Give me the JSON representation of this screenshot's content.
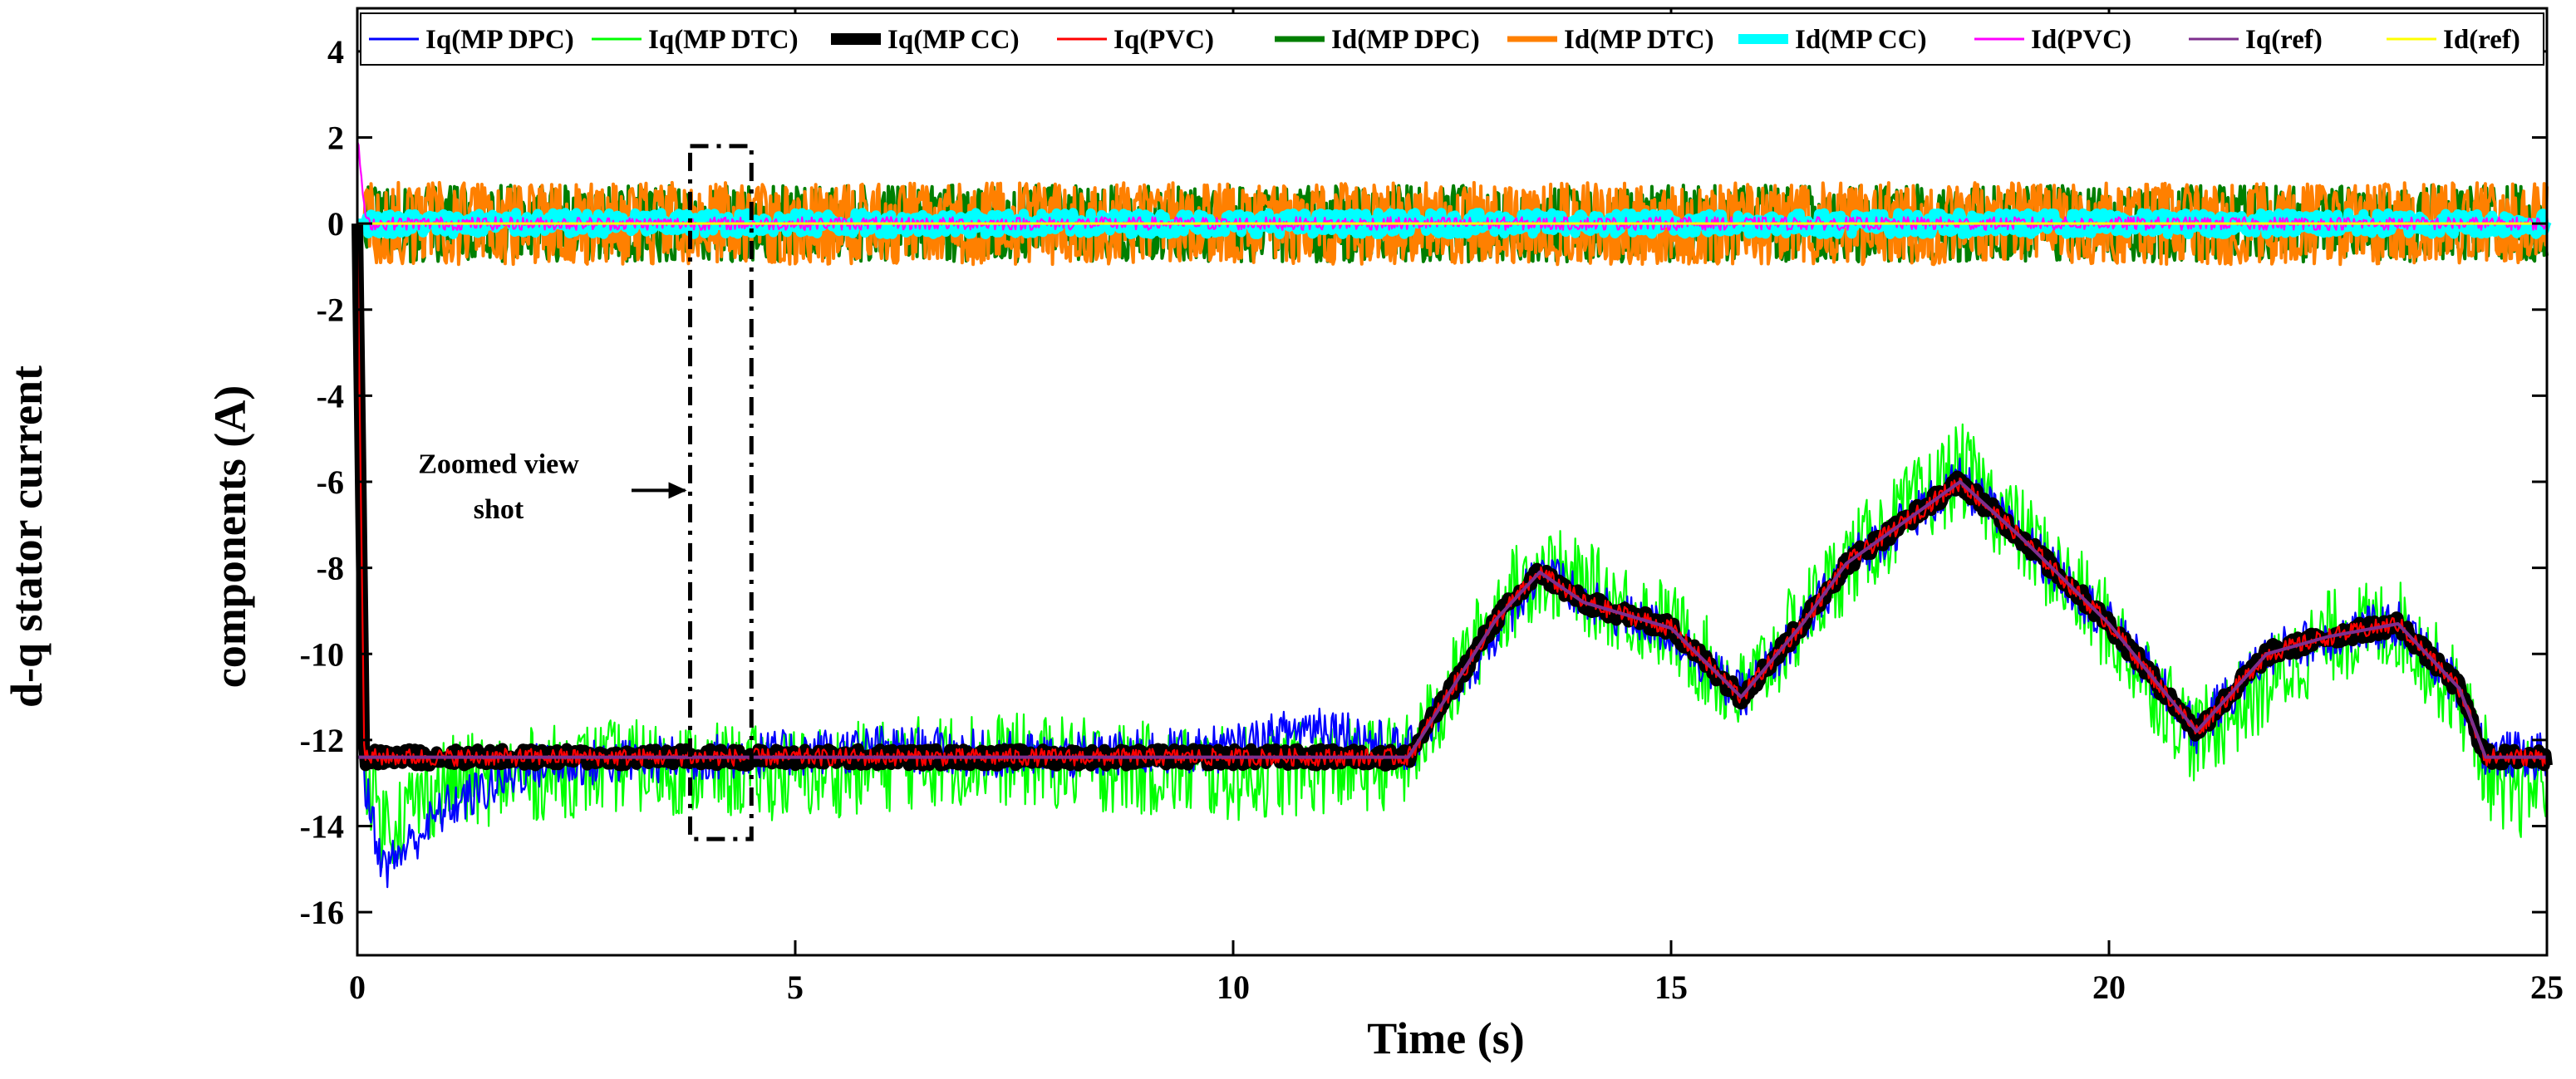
{
  "chart_data": {
    "type": "line",
    "title": "",
    "xlabel": "Time (s)",
    "ylabel": [
      "d-q stator current",
      "components (A)"
    ],
    "xlim": [
      0,
      25
    ],
    "ylim": [
      -17,
      5
    ],
    "xticks": [
      0,
      5,
      10,
      15,
      20,
      25
    ],
    "yticks": [
      4,
      2,
      0,
      -2,
      -4,
      -6,
      -8,
      -10,
      -12,
      -14,
      -16
    ],
    "grid": false,
    "legend_position": "top",
    "series": [
      {
        "name": "Iq(MP DPC)",
        "color": "#0000ff",
        "noise": 0.55,
        "values": [
          [
            0,
            0
          ],
          [
            0.08,
            -13.0
          ],
          [
            0.3,
            -15.0
          ],
          [
            1,
            -13.6
          ],
          [
            2,
            -12.6
          ],
          [
            4,
            -12.4
          ],
          [
            6,
            -12.2
          ],
          [
            8,
            -12.4
          ],
          [
            10,
            -12.2
          ],
          [
            11,
            -11.6
          ],
          [
            12,
            -12.3
          ],
          [
            13,
            -9.5
          ],
          [
            13.5,
            -8.0
          ],
          [
            14,
            -8.8
          ],
          [
            15,
            -9.5
          ],
          [
            15.8,
            -11.0
          ],
          [
            16.5,
            -9.4
          ],
          [
            17,
            -7.9
          ],
          [
            18.3,
            -6.0
          ],
          [
            19,
            -7.3
          ],
          [
            20,
            -9.3
          ],
          [
            21,
            -11.8
          ],
          [
            21.8,
            -10.0
          ],
          [
            22.5,
            -9.6
          ],
          [
            23.3,
            -9.3
          ],
          [
            24,
            -10.8
          ],
          [
            24.3,
            -12.3
          ],
          [
            25,
            -12.4
          ]
        ]
      },
      {
        "name": "Iq(MP DTC)",
        "color": "#00ff00",
        "noise": 1.1,
        "values": [
          [
            0,
            0
          ],
          [
            0.08,
            -12.5
          ],
          [
            0.3,
            -14.0
          ],
          [
            1,
            -13.0
          ],
          [
            3,
            -12.6
          ],
          [
            5,
            -12.8
          ],
          [
            7,
            -12.4
          ],
          [
            10,
            -12.8
          ],
          [
            12,
            -12.5
          ],
          [
            13,
            -9.0
          ],
          [
            13.5,
            -8.0
          ],
          [
            15,
            -9.4
          ],
          [
            15.8,
            -11.0
          ],
          [
            17,
            -7.9
          ],
          [
            18.3,
            -5.7
          ],
          [
            20,
            -9.4
          ],
          [
            21,
            -12.0
          ],
          [
            22.5,
            -9.6
          ],
          [
            23.3,
            -9.3
          ],
          [
            24,
            -11.0
          ],
          [
            24.5,
            -13.5
          ],
          [
            25,
            -12.8
          ]
        ]
      },
      {
        "name": "Iq(MP CC)",
        "color": "#000000",
        "noise": 0.2,
        "values": [
          [
            0,
            0
          ],
          [
            0.08,
            -12.4
          ],
          [
            12,
            -12.4
          ],
          [
            13,
            -9.2
          ],
          [
            13.5,
            -8.1
          ],
          [
            14,
            -8.8
          ],
          [
            15,
            -9.4
          ],
          [
            15.8,
            -11.0
          ],
          [
            16.5,
            -9.3
          ],
          [
            17,
            -7.9
          ],
          [
            18.3,
            -6.0
          ],
          [
            19,
            -7.3
          ],
          [
            20,
            -9.3
          ],
          [
            21,
            -11.8
          ],
          [
            21.8,
            -10.0
          ],
          [
            22.5,
            -9.6
          ],
          [
            23.3,
            -9.3
          ],
          [
            24,
            -10.8
          ],
          [
            24.3,
            -12.4
          ],
          [
            25,
            -12.4
          ]
        ]
      },
      {
        "name": "Iq(PVC)",
        "color": "#ff0000",
        "noise": 0.2,
        "values": [
          [
            0,
            0
          ],
          [
            0.08,
            -12.4
          ],
          [
            12,
            -12.4
          ],
          [
            13,
            -9.2
          ],
          [
            13.5,
            -8.1
          ],
          [
            14,
            -8.8
          ],
          [
            15,
            -9.4
          ],
          [
            15.8,
            -11.0
          ],
          [
            16.5,
            -9.3
          ],
          [
            17,
            -7.9
          ],
          [
            18.3,
            -6.0
          ],
          [
            19,
            -7.3
          ],
          [
            20,
            -9.3
          ],
          [
            21,
            -11.8
          ],
          [
            21.8,
            -10.0
          ],
          [
            22.5,
            -9.6
          ],
          [
            23.3,
            -9.3
          ],
          [
            24,
            -10.8
          ],
          [
            24.3,
            -12.4
          ],
          [
            25,
            -12.4
          ]
        ]
      },
      {
        "name": "Id(MP DPC)",
        "color": "#007f00",
        "noise": 0.9,
        "values": [
          [
            0,
            0
          ],
          [
            25,
            0
          ]
        ]
      },
      {
        "name": "Id(MP DTC)",
        "color": "#ff8000",
        "noise": 1.0,
        "values": [
          [
            0,
            0
          ],
          [
            25,
            0
          ]
        ]
      },
      {
        "name": "Id(MP CC)",
        "color": "#00ffff",
        "noise": 0.25,
        "values": [
          [
            0,
            0
          ],
          [
            25,
            0
          ]
        ]
      },
      {
        "name": "Id(PVC)",
        "color": "#ff00ff",
        "noise": 0.15,
        "values": [
          [
            0,
            2.0
          ],
          [
            0.1,
            0
          ],
          [
            25,
            0
          ]
        ]
      },
      {
        "name": "Iq(ref)",
        "color": "#7e2f8e",
        "noise": 0,
        "values": [
          [
            0,
            -12.4
          ],
          [
            12,
            -12.4
          ],
          [
            13,
            -9.2
          ],
          [
            13.5,
            -8.1
          ],
          [
            14,
            -8.8
          ],
          [
            15,
            -9.4
          ],
          [
            15.8,
            -11.0
          ],
          [
            16.5,
            -9.3
          ],
          [
            17,
            -7.9
          ],
          [
            18.3,
            -6.0
          ],
          [
            19,
            -7.3
          ],
          [
            20,
            -9.3
          ],
          [
            21,
            -11.8
          ],
          [
            21.8,
            -10.0
          ],
          [
            22.5,
            -9.6
          ],
          [
            23.3,
            -9.3
          ],
          [
            24,
            -10.8
          ],
          [
            24.3,
            -12.4
          ],
          [
            25,
            -12.4
          ]
        ]
      },
      {
        "name": "Id(ref)",
        "color": "#ffff00",
        "noise": 0,
        "values": [
          [
            0,
            0
          ],
          [
            25,
            0
          ]
        ]
      }
    ],
    "annotations": [
      {
        "text": [
          "Zoomed view",
          "shot"
        ],
        "x_range": [
          3.8,
          4.5
        ],
        "y_range": [
          -14.3,
          1.8
        ]
      }
    ]
  }
}
